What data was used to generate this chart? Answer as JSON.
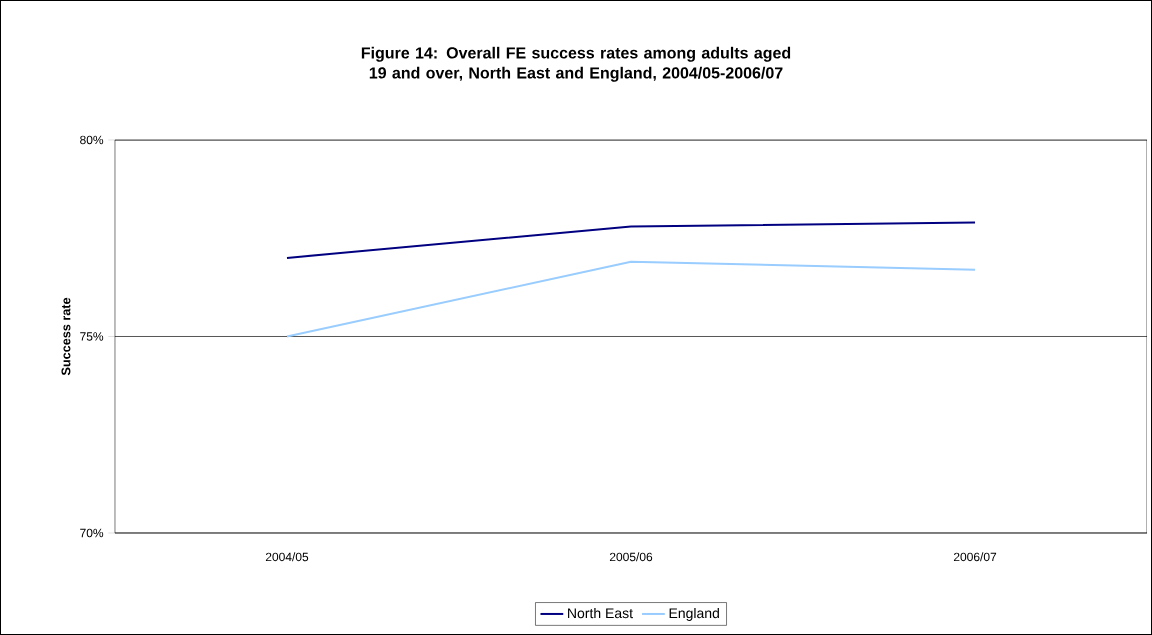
{
  "chart_data": {
    "type": "line",
    "title": "Figure 14: Overall FE success rates among adults aged 19 and over, North East and England, 2004/05-2006/07",
    "ylabel": "Success rate",
    "categories": [
      "2004/05",
      "2005/06",
      "2006/07"
    ],
    "series": [
      {
        "name": "North East",
        "color": "#000080",
        "values": [
          77.0,
          77.8,
          77.9
        ]
      },
      {
        "name": "England",
        "color": "#99ccff",
        "values": [
          75.0,
          76.9,
          76.7
        ]
      }
    ],
    "ylim": [
      70,
      80
    ],
    "yticks": [
      {
        "value": 70,
        "label": "70%"
      },
      {
        "value": 75,
        "label": "75%"
      },
      {
        "value": 80,
        "label": "80%"
      }
    ],
    "grid": "y",
    "legend": "bottom",
    "marker": "none",
    "line_style": "solid"
  }
}
